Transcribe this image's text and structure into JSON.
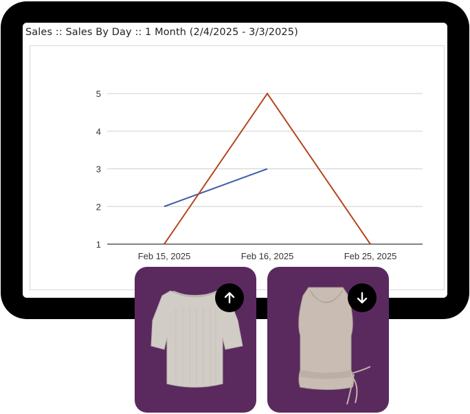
{
  "chart_data": {
    "type": "line",
    "title": "Sales :: Sales By Day :: 1 Month (2/4/2025 - 3/3/2025)",
    "categories": [
      "Feb 15, 2025",
      "Feb 16, 2025",
      "Feb 25, 2025"
    ],
    "yticks": [
      "1",
      "2",
      "3",
      "4",
      "5"
    ],
    "ylim": [
      1,
      5
    ],
    "grid": true,
    "series": [
      {
        "color": "#3b5ba8",
        "values": [
          2,
          3,
          null
        ]
      },
      {
        "color": "#b5441c",
        "values": [
          1,
          5,
          1
        ]
      }
    ]
  },
  "cards": [
    {
      "icon": "arrow-up-icon",
      "image": "knit-top-image"
    },
    {
      "icon": "arrow-down-icon",
      "image": "satin-top-image"
    }
  ],
  "colors": {
    "device": "#000000",
    "card_bg": "#5a2a5f"
  }
}
